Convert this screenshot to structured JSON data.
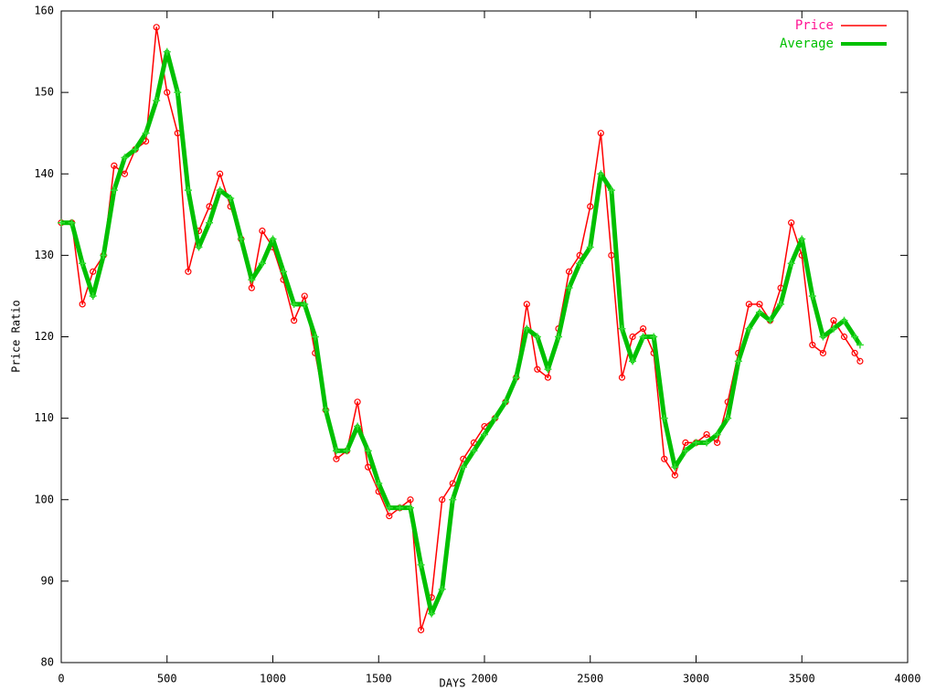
{
  "chart_data": {
    "type": "line",
    "x_label": "DAYS",
    "y_label": "Price Ratio",
    "x": [
      0,
      50,
      100,
      150,
      200,
      250,
      300,
      350,
      400,
      450,
      500,
      550,
      600,
      650,
      700,
      750,
      800,
      850,
      900,
      950,
      1000,
      1050,
      1100,
      1150,
      1200,
      1250,
      1300,
      1350,
      1400,
      1450,
      1500,
      1550,
      1600,
      1650,
      1700,
      1750,
      1800,
      1850,
      1900,
      1950,
      2000,
      2050,
      2100,
      2150,
      2200,
      2250,
      2300,
      2350,
      2400,
      2450,
      2500,
      2550,
      2600,
      2650,
      2700,
      2750,
      2800,
      2850,
      2900,
      2950,
      3000,
      3050,
      3100,
      3150,
      3200,
      3250,
      3300,
      3350,
      3400,
      3450,
      3500,
      3550,
      3600,
      3650,
      3700,
      3750,
      3775
    ],
    "series": [
      {
        "name": "Price",
        "color": "#ff0000",
        "values": [
          134,
          134,
          124,
          128,
          130,
          141,
          140,
          143,
          144,
          158,
          150,
          145,
          128,
          133,
          136,
          140,
          136,
          132,
          126,
          133,
          131,
          127,
          122,
          125,
          118,
          111,
          105,
          106,
          112,
          104,
          101,
          98,
          99,
          100,
          84,
          88,
          100,
          102,
          105,
          107,
          109,
          110,
          112,
          115,
          124,
          116,
          115,
          121,
          128,
          130,
          136,
          145,
          130,
          115,
          120,
          121,
          118,
          105,
          103,
          107,
          107,
          108,
          107,
          112,
          118,
          124,
          124,
          122,
          126,
          134,
          130,
          119,
          118,
          122,
          120,
          118,
          117
        ]
      },
      {
        "name": "Average",
        "color": "#00c000",
        "values": [
          134,
          134,
          129,
          125,
          130,
          138,
          142,
          143,
          145,
          149,
          155,
          150,
          138,
          131,
          134,
          138,
          137,
          132,
          127,
          129,
          132,
          128,
          124,
          124,
          120,
          111,
          106,
          106,
          109,
          106,
          102,
          99,
          99,
          99,
          92,
          86,
          89,
          100,
          104,
          106,
          108,
          110,
          112,
          115,
          121,
          120,
          116,
          120,
          126,
          129,
          131,
          140,
          138,
          121,
          117,
          120,
          120,
          110,
          104,
          106,
          107,
          107,
          108,
          110,
          117,
          121,
          123,
          122,
          124,
          129,
          132,
          125,
          120,
          121,
          122,
          120,
          119
        ]
      }
    ],
    "xlim": [
      0,
      4000
    ],
    "xticks": [
      0,
      500,
      1000,
      1500,
      2000,
      2500,
      3000,
      3500,
      4000
    ],
    "ylim": [
      80,
      160
    ],
    "yticks": [
      80,
      90,
      100,
      110,
      120,
      130,
      140,
      150,
      160
    ],
    "legend": "upper right"
  }
}
